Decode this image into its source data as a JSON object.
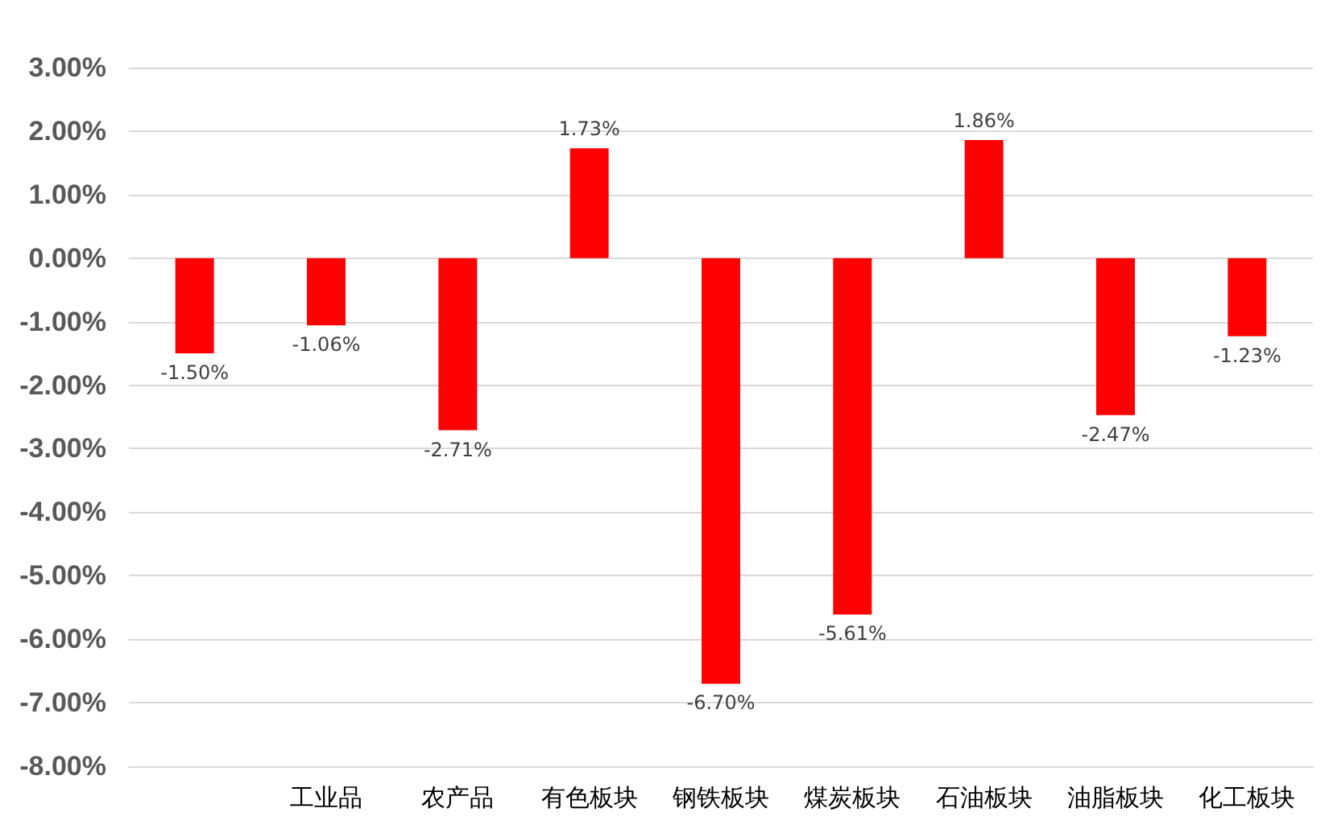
{
  "chart_data": {
    "type": "bar",
    "categories": [
      null,
      "工业品",
      "农产品",
      "有色板块",
      "钢铁板块",
      "煤炭板块",
      "石油板块",
      "油脂板块",
      "化工板块"
    ],
    "series": [
      {
        "color": "#ff0000",
        "values": [
          -1.5,
          -1.06,
          -2.71,
          1.73,
          -6.7,
          -5.61,
          1.86,
          -2.47,
          -1.23
        ],
        "value_labels": [
          "-1.50%",
          "-1.06%",
          "-2.71%",
          "1.73%",
          "-6.70%",
          "-5.61%",
          "1.86%",
          "-2.47%",
          "-1.23%"
        ]
      }
    ],
    "ylim": [
      -8,
      3
    ],
    "yticks": [
      {
        "value": 3,
        "label": "3.00%"
      },
      {
        "value": 2,
        "label": "2.00%"
      },
      {
        "value": 1,
        "label": "1.00%"
      },
      {
        "value": 0,
        "label": "0.00%"
      },
      {
        "value": -1,
        "label": "-1.00%"
      },
      {
        "value": -2,
        "label": "-2.00%"
      },
      {
        "value": -3,
        "label": "-3.00%"
      },
      {
        "value": -4,
        "label": "-4.00%"
      },
      {
        "value": -5,
        "label": "-5.00%"
      },
      {
        "value": -6,
        "label": "-6.00%"
      },
      {
        "value": -7,
        "label": "-7.00%"
      },
      {
        "value": -8,
        "label": "-8.00%"
      }
    ],
    "grid": "y"
  }
}
